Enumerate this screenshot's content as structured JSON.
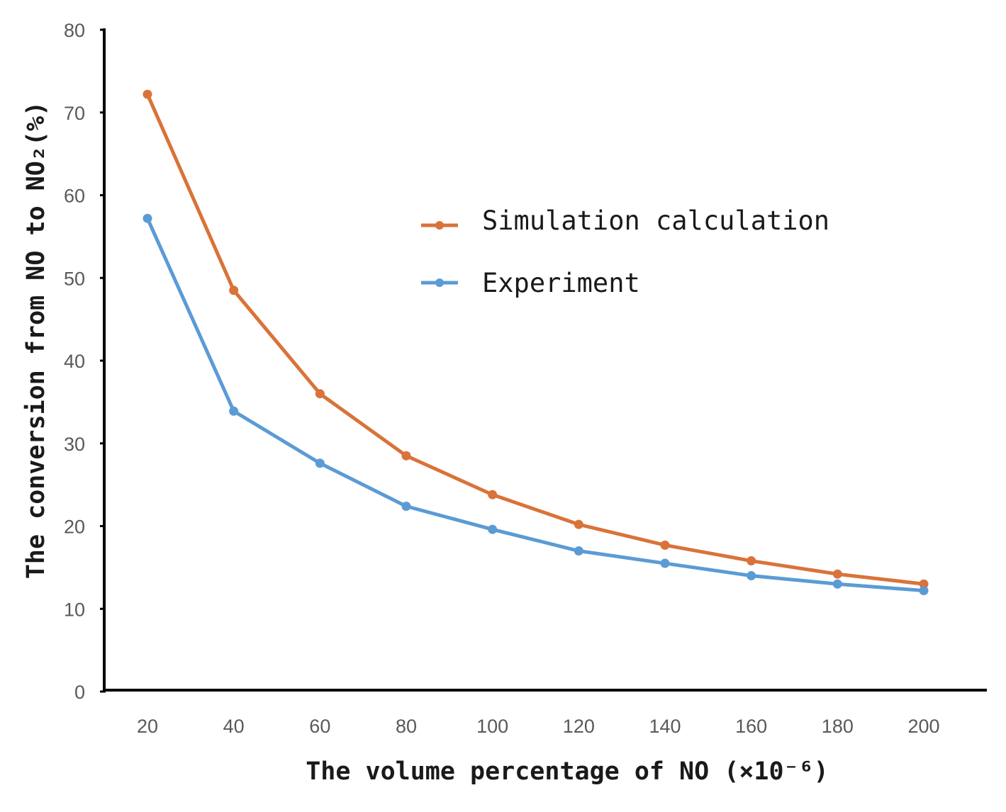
{
  "chart_data": {
    "type": "line",
    "title": "",
    "x": [
      20,
      40,
      60,
      80,
      100,
      120,
      140,
      160,
      180,
      200
    ],
    "xticks": [
      "20",
      "40",
      "60",
      "80",
      "100",
      "120",
      "140",
      "160",
      "180",
      "200"
    ],
    "ylim": [
      0,
      80
    ],
    "yticks": [
      "0",
      "10",
      "20",
      "30",
      "40",
      "50",
      "60",
      "70",
      "80"
    ],
    "xlabel": "The volume percentage of NO (×10⁻⁶)",
    "ylabel": "The conversion from NO to NO₂(%)",
    "grid": false,
    "legend_position": "upper-right",
    "series": [
      {
        "name": "Simulation calculation",
        "color": "#D9733A",
        "values": [
          72.2,
          48.5,
          36.0,
          28.5,
          23.8,
          20.2,
          17.7,
          15.8,
          14.2,
          13.0
        ]
      },
      {
        "name": "Experiment",
        "color": "#5B9BD5",
        "values": [
          57.2,
          33.9,
          27.6,
          22.4,
          19.6,
          17.0,
          15.5,
          14.0,
          13.0,
          12.2
        ]
      }
    ]
  }
}
